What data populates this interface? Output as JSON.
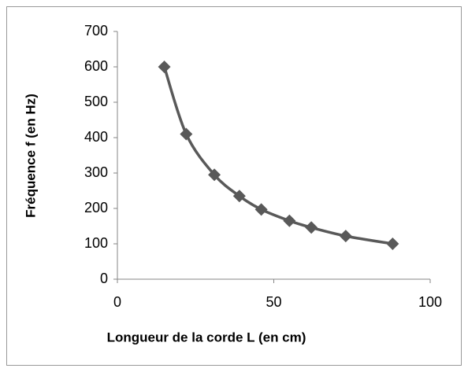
{
  "chart_data": {
    "type": "scatter",
    "xlabel": "Longueur de la corde L (en cm)",
    "ylabel": "Fréquence f (en Hz)",
    "x": [
      15,
      22,
      31,
      39,
      46,
      55,
      62,
      73,
      88
    ],
    "series": [
      {
        "color": "#595959",
        "values": [
          600,
          410,
          295,
          235,
          197,
          165,
          146,
          122,
          100
        ]
      }
    ],
    "xlim": [
      0,
      100
    ],
    "xticks": [
      0,
      50,
      100
    ],
    "ylim": [
      0,
      700
    ],
    "yticks": [
      0,
      100,
      200,
      300,
      400,
      500,
      600,
      700
    ],
    "smooth": true,
    "grid": false
  }
}
